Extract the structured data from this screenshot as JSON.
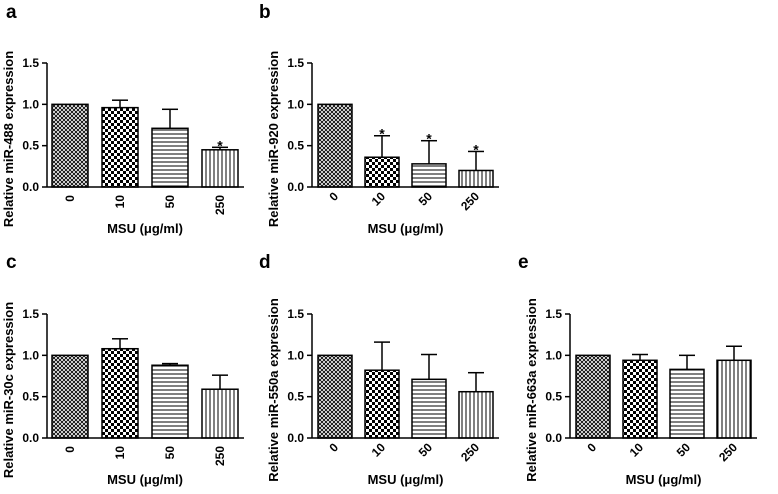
{
  "colors": {
    "ink": "#000000",
    "background": "#ffffff"
  },
  "chart_data": [
    {
      "panel": "a",
      "type": "bar",
      "categories": [
        "0",
        "10",
        "50",
        "250"
      ],
      "values": [
        1.0,
        0.96,
        0.71,
        0.45
      ],
      "errors": [
        0.0,
        0.09,
        0.23,
        0.03
      ],
      "significance": [
        "",
        "",
        "",
        "*"
      ],
      "patterns": [
        "dense-crosshatch",
        "checker",
        "horizontal-lines",
        "vertical-lines"
      ],
      "ylabel": "Relative miR-488 expression",
      "xlabel": "MSU (μg/ml)",
      "ylim": [
        0,
        1.5
      ],
      "yticks": [
        "0.0",
        "0.5",
        "1.0",
        "1.5"
      ],
      "rotate_xticks": false
    },
    {
      "panel": "b",
      "type": "bar",
      "categories": [
        "0",
        "10",
        "50",
        "250"
      ],
      "values": [
        1.0,
        0.36,
        0.28,
        0.2
      ],
      "errors": [
        0.0,
        0.26,
        0.28,
        0.23
      ],
      "significance": [
        "",
        "*",
        "*",
        "*"
      ],
      "patterns": [
        "dense-crosshatch",
        "checker",
        "horizontal-lines",
        "vertical-lines"
      ],
      "ylabel": "Relative miR-920 expression",
      "xlabel": "MSU (μg/ml)",
      "ylim": [
        0,
        1.5
      ],
      "yticks": [
        "0.0",
        "0.5",
        "1.0",
        "1.5"
      ],
      "rotate_xticks": true
    },
    {
      "panel": "c",
      "type": "bar",
      "categories": [
        "0",
        "10",
        "50",
        "250"
      ],
      "values": [
        1.0,
        1.08,
        0.88,
        0.59
      ],
      "errors": [
        0.0,
        0.12,
        0.02,
        0.17
      ],
      "significance": [
        "",
        "",
        "",
        ""
      ],
      "patterns": [
        "dense-crosshatch",
        "checker",
        "horizontal-lines",
        "vertical-lines"
      ],
      "ylabel": "Relative miR-30c expression",
      "xlabel": "MSU (μg/ml)",
      "ylim": [
        0,
        1.5
      ],
      "yticks": [
        "0.0",
        "0.5",
        "1.0",
        "1.5"
      ],
      "rotate_xticks": false
    },
    {
      "panel": "d",
      "type": "bar",
      "categories": [
        "0",
        "10",
        "50",
        "250"
      ],
      "values": [
        1.0,
        0.82,
        0.71,
        0.56
      ],
      "errors": [
        0.0,
        0.34,
        0.3,
        0.23
      ],
      "significance": [
        "",
        "",
        "",
        ""
      ],
      "patterns": [
        "dense-crosshatch",
        "checker",
        "horizontal-lines",
        "vertical-lines"
      ],
      "ylabel": "Relative miR-550a expression",
      "xlabel": "MSU (μg/ml)",
      "ylim": [
        0,
        1.5
      ],
      "yticks": [
        "0.0",
        "0.5",
        "1.0",
        "1.5"
      ],
      "rotate_xticks": true
    },
    {
      "panel": "e",
      "type": "bar",
      "categories": [
        "0",
        "10",
        "50",
        "250"
      ],
      "values": [
        1.0,
        0.94,
        0.83,
        0.94
      ],
      "errors": [
        0.0,
        0.07,
        0.17,
        0.17
      ],
      "significance": [
        "",
        "",
        "",
        ""
      ],
      "patterns": [
        "dense-crosshatch",
        "checker",
        "horizontal-lines",
        "vertical-lines"
      ],
      "ylabel": "Relative miR-663a expression",
      "xlabel": "MSU (μg/ml)",
      "ylim": [
        0,
        1.5
      ],
      "yticks": [
        "0.0",
        "0.5",
        "1.0",
        "1.5"
      ],
      "rotate_xticks": true
    }
  ]
}
